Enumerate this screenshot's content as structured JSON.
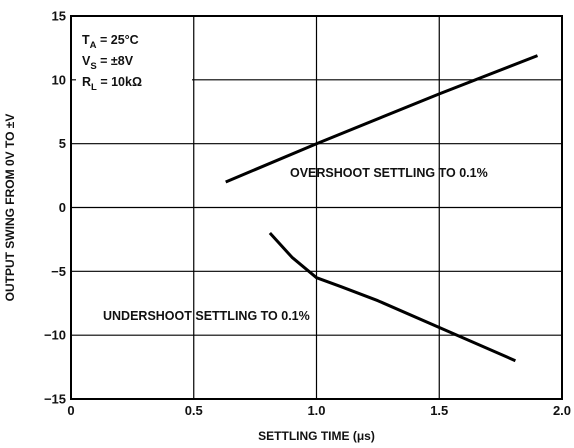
{
  "chart_data": {
    "type": "line",
    "xlabel": "SETTLING TIME (μs)",
    "ylabel": "OUTPUT SWING FROM 0V TO ±V",
    "xlim": [
      0,
      2.0
    ],
    "ylim": [
      -15,
      15
    ],
    "xticks": [
      0,
      0.5,
      1.0,
      1.5,
      2.0
    ],
    "xtick_labels": [
      "0",
      "0.5",
      "1.0",
      "1.5",
      "2.0"
    ],
    "yticks": [
      15,
      10,
      5,
      0,
      -5,
      -10,
      -15
    ],
    "ytick_labels": [
      "15",
      "10",
      "5",
      "0",
      "−5",
      "−10",
      "−15"
    ],
    "grid": true,
    "conditions": [
      {
        "main": "T",
        "sub": "A",
        "rest": " = 25°C"
      },
      {
        "main": "V",
        "sub": "S",
        "rest": " = ±8V"
      },
      {
        "main": "R",
        "sub": "L",
        "rest": " = 10kΩ"
      }
    ],
    "series": [
      {
        "name": "OVERSHOOT SETTLING TO 0.1%",
        "x": [
          0.63,
          1.0,
          1.5,
          1.9
        ],
        "y": [
          2.0,
          5.0,
          8.9,
          11.9
        ]
      },
      {
        "name": "UNDERSHOOT SETTLING TO 0.1%",
        "x": [
          0.81,
          0.9,
          1.0,
          1.1,
          1.25,
          1.5,
          1.81
        ],
        "y": [
          -2.0,
          -3.9,
          -5.5,
          -6.2,
          -7.3,
          -9.4,
          -12.0
        ]
      }
    ]
  }
}
